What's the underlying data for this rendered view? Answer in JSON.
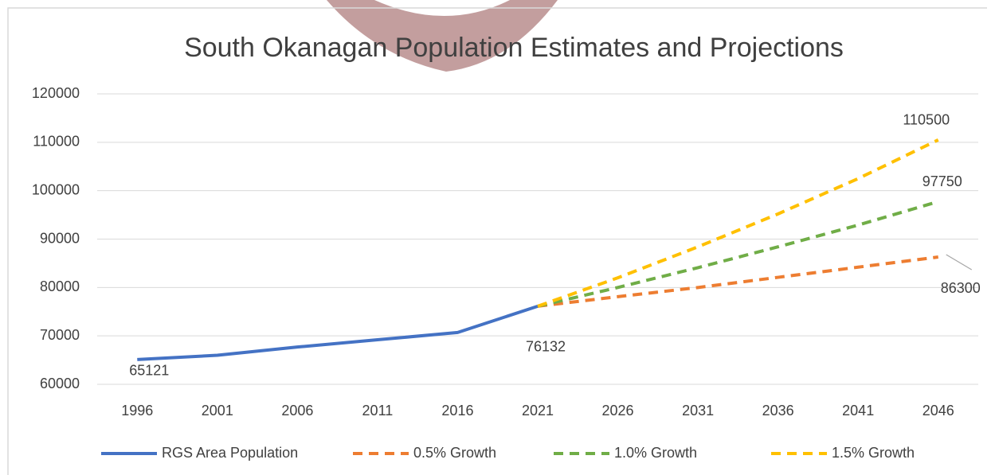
{
  "chart_data": {
    "type": "line",
    "title": "South Okanagan Population Estimates and Projections",
    "categories": [
      "1996",
      "2001",
      "2006",
      "2011",
      "2016",
      "2021",
      "2026",
      "2031",
      "2036",
      "2041",
      "2046"
    ],
    "ylim": [
      60000,
      120000
    ],
    "yticks": [
      60000,
      70000,
      80000,
      90000,
      100000,
      110000,
      120000
    ],
    "grid": true,
    "legend": "bottom",
    "series": [
      {
        "name": "RGS Area Population",
        "color": "#4472c4",
        "dashed": false,
        "label_indices": [
          0,
          5
        ],
        "values": [
          65121,
          66000,
          67700,
          69200,
          70700,
          76132,
          null,
          null,
          null,
          null,
          null
        ]
      },
      {
        "name": "0.5% Growth",
        "color": "#ed7d31",
        "dashed": true,
        "label_indices": [
          10
        ],
        "values": [
          null,
          null,
          null,
          null,
          null,
          76132,
          78100,
          80000,
          82100,
          84200,
          86300
        ]
      },
      {
        "name": "1.0% Growth",
        "color": "#70ad47",
        "dashed": true,
        "label_indices": [
          10
        ],
        "values": [
          null,
          null,
          null,
          null,
          null,
          76132,
          80000,
          84100,
          88400,
          92900,
          97750
        ]
      },
      {
        "name": "1.5% Growth",
        "color": "#ffc000",
        "dashed": true,
        "label_indices": [
          10
        ],
        "values": [
          null,
          null,
          null,
          null,
          null,
          76132,
          82000,
          88400,
          95200,
          102500,
          110500
        ]
      }
    ]
  }
}
